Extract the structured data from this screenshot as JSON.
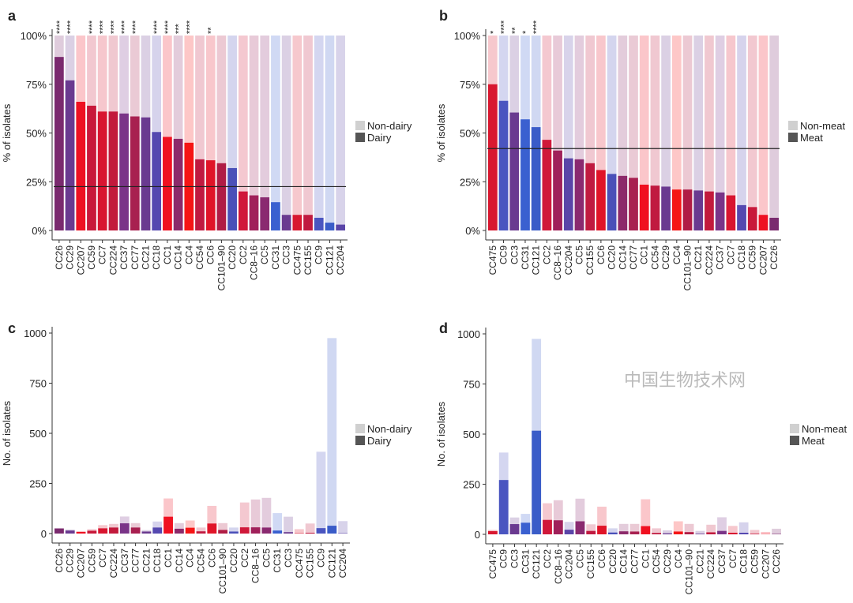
{
  "colors": {
    "CC26": "#7a2a6e",
    "CC29": "#6a3a90",
    "CC207": "#ee1122",
    "CC59": "#c8183a",
    "CC7": "#d81530",
    "CC224": "#c21a3c",
    "CC37": "#7a3488",
    "CC77": "#a82050",
    "CC21": "#6a3a90",
    "CC18": "#5548b0",
    "CC1": "#f01020",
    "CC14": "#8c2a6a",
    "CC4": "#f51515",
    "CC54": "#c01a40",
    "CC6": "#e01428",
    "CC101–90": "#b01c45",
    "CC20": "#4a50b8",
    "CC2": "#d0183a",
    "CC8–16": "#a0205a",
    "CC5": "#8a2a70",
    "CC31": "#3a60d0",
    "CC3": "#6a3a90",
    "CC475": "#d81830",
    "CC155": "#c01a40",
    "CC9": "#4a55c0",
    "CC121": "#3a5cc8",
    "CC204": "#5a45a8"
  },
  "watermark": "中国生物技术网",
  "chart_data": [
    {
      "panel": "a",
      "type": "bar",
      "ylabel": "% of isolates",
      "ylim": [
        0,
        100
      ],
      "yticks": [
        "0%",
        "25%",
        "50%",
        "75%",
        "100%"
      ],
      "legend": [
        "Non-dairy",
        "Dairy"
      ],
      "legend_position": "right",
      "reference_line": 22.5,
      "categories": [
        "CC26",
        "CC29",
        "CC207",
        "CC59",
        "CC7",
        "CC224",
        "CC37",
        "CC77",
        "CC21",
        "CC18",
        "CC1",
        "CC14",
        "CC4",
        "CC54",
        "CC6",
        "CC101–90",
        "CC20",
        "CC2",
        "CC8–16",
        "CC5",
        "CC31",
        "CC3",
        "CC475",
        "CC155",
        "CC9",
        "CC121",
        "CC204"
      ],
      "values": [
        89,
        77,
        66,
        64,
        61,
        61,
        60,
        58.5,
        58,
        50.5,
        48,
        47,
        45,
        36.5,
        36,
        34.5,
        32,
        20,
        18,
        17,
        14.5,
        8,
        8,
        8,
        6.5,
        4,
        3
      ],
      "significance": [
        "****",
        "****",
        "",
        "****",
        "****",
        "****",
        "****",
        "****",
        "",
        "****",
        "****",
        "***",
        "****",
        "",
        "**",
        "",
        "",
        "",
        "",
        "",
        "",
        "",
        "",
        "",
        "",
        "",
        ""
      ]
    },
    {
      "panel": "b",
      "type": "bar",
      "ylabel": "% of isolates",
      "ylim": [
        0,
        100
      ],
      "yticks": [
        "0%",
        "25%",
        "50%",
        "75%",
        "100%"
      ],
      "legend": [
        "Non-meat",
        "Meat"
      ],
      "legend_position": "right",
      "reference_line": 42,
      "categories": [
        "CC475",
        "CC9",
        "CC3",
        "CC31",
        "CC121",
        "CC2",
        "CC8–16",
        "CC204",
        "CC5",
        "CC155",
        "CC6",
        "CC20",
        "CC14",
        "CC77",
        "CC1",
        "CC54",
        "CC29",
        "CC4",
        "CC101–90",
        "CC21",
        "CC224",
        "CC37",
        "CC7",
        "CC18",
        "CC59",
        "CC207",
        "CC26"
      ],
      "values": [
        75,
        66.5,
        60.5,
        57,
        53,
        46.5,
        41,
        37,
        36.5,
        34.5,
        31,
        29,
        28,
        27,
        23.5,
        23,
        22.5,
        21,
        21,
        20.5,
        20,
        19.5,
        18,
        13,
        12,
        8,
        6.5
      ],
      "significance": [
        "*",
        "****",
        "**",
        "*",
        "****",
        "",
        "",
        "",
        "",
        "",
        "",
        "",
        "",
        "",
        "",
        "",
        "",
        "",
        "",
        "",
        "",
        "",
        "",
        "",
        "",
        "",
        ""
      ]
    },
    {
      "panel": "c",
      "type": "bar",
      "ylabel": "No. of isolates",
      "ylim": [
        0,
        1000
      ],
      "yticks": [
        "0",
        "250",
        "500",
        "750",
        "1000"
      ],
      "legend": [
        "Non-dairy",
        "Dairy"
      ],
      "legend_position": "right",
      "categories": [
        "CC26",
        "CC29",
        "CC207",
        "CC59",
        "CC7",
        "CC224",
        "CC37",
        "CC77",
        "CC21",
        "CC18",
        "CC1",
        "CC14",
        "CC4",
        "CC54",
        "CC6",
        "CC101–90",
        "CC20",
        "CC2",
        "CC8–16",
        "CC5",
        "CC31",
        "CC3",
        "CC475",
        "CC155",
        "CC9",
        "CC121",
        "CC204"
      ],
      "totals": [
        28,
        20,
        12,
        22,
        42,
        48,
        85,
        52,
        17,
        60,
        175,
        52,
        65,
        30,
        138,
        52,
        30,
        155,
        170,
        178,
        102,
        84,
        22,
        50,
        408,
        975,
        62
      ],
      "values": [
        25,
        15,
        8,
        14,
        26,
        30,
        51,
        30,
        10,
        30,
        84,
        24,
        29,
        11,
        50,
        18,
        10,
        31,
        31,
        30,
        15,
        7,
        2,
        4,
        27,
        39,
        2
      ]
    },
    {
      "panel": "d",
      "type": "bar",
      "ylabel": "No. of isolates",
      "ylim": [
        0,
        1000
      ],
      "yticks": [
        "0",
        "250",
        "500",
        "750",
        "1000"
      ],
      "legend": [
        "Non-meat",
        "Meat"
      ],
      "legend_position": "right",
      "categories": [
        "CC475",
        "CC9",
        "CC3",
        "CC31",
        "CC121",
        "CC2",
        "CC8–16",
        "CC204",
        "CC5",
        "CC155",
        "CC6",
        "CC20",
        "CC14",
        "CC77",
        "CC1",
        "CC54",
        "CC29",
        "CC4",
        "CC101–90",
        "CC21",
        "CC224",
        "CC37",
        "CC7",
        "CC18",
        "CC59",
        "CC207",
        "CC26"
      ],
      "totals": [
        22,
        408,
        84,
        102,
        975,
        155,
        170,
        62,
        178,
        50,
        138,
        30,
        52,
        52,
        175,
        30,
        20,
        65,
        52,
        17,
        48,
        85,
        42,
        60,
        22,
        12,
        28
      ],
      "values": [
        16,
        271,
        51,
        58,
        517,
        72,
        70,
        23,
        65,
        17,
        43,
        9,
        15,
        14,
        41,
        7,
        5,
        14,
        11,
        3,
        10,
        17,
        8,
        8,
        3,
        1,
        2
      ]
    }
  ]
}
